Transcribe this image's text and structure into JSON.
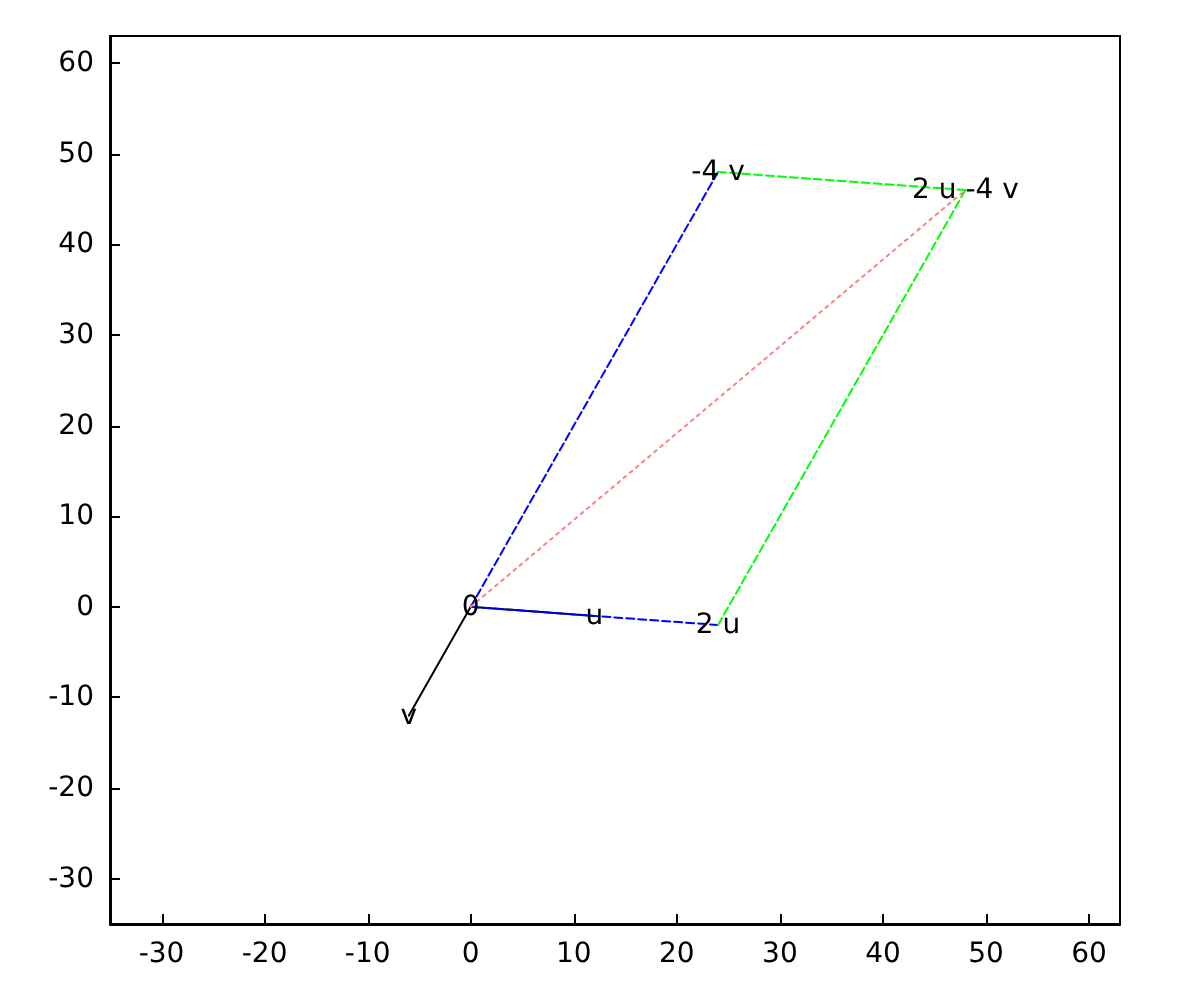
{
  "chart_data": {
    "type": "line",
    "xlim": [
      -35,
      63
    ],
    "ylim": [
      -35,
      63
    ],
    "xticks": [
      -30,
      -20,
      -10,
      0,
      10,
      20,
      30,
      40,
      50,
      60
    ],
    "yticks": [
      -30,
      -20,
      -10,
      0,
      10,
      20,
      30,
      40,
      50,
      60
    ],
    "grid": false,
    "marker": "none",
    "series": [
      {
        "color": "#000000",
        "line_style": "solid",
        "x": [
          0,
          12
        ],
        "values": [
          0,
          -1
        ]
      },
      {
        "color": "#000000",
        "line_style": "solid",
        "x": [
          0,
          -6
        ],
        "values": [
          0,
          -12
        ]
      },
      {
        "color": "#0000ff",
        "line_style": "dashed",
        "x": [
          0,
          24
        ],
        "values": [
          0,
          -2
        ]
      },
      {
        "color": "#0000ff",
        "line_style": "dashed",
        "x": [
          0,
          24
        ],
        "values": [
          0,
          48
        ]
      },
      {
        "color": "#00ff00",
        "line_style": "dashed",
        "x": [
          24,
          48
        ],
        "values": [
          -2,
          46
        ]
      },
      {
        "color": "#00ff00",
        "line_style": "dashed",
        "x": [
          24,
          48
        ],
        "values": [
          48,
          46
        ]
      },
      {
        "color": "#ff8080",
        "line_style": "dotted",
        "x": [
          0,
          48
        ],
        "values": [
          0,
          46
        ]
      }
    ],
    "annotations": [
      {
        "text": "0",
        "x": 0,
        "y": 0
      },
      {
        "text": "u",
        "x": 12,
        "y": -1
      },
      {
        "text": "2 u",
        "x": 24,
        "y": -2
      },
      {
        "text": "v",
        "x": -6,
        "y": -12
      },
      {
        "text": "-4 v",
        "x": 24,
        "y": 48
      },
      {
        "text": "2 u -4 v",
        "x": 48,
        "y": 46
      }
    ]
  }
}
